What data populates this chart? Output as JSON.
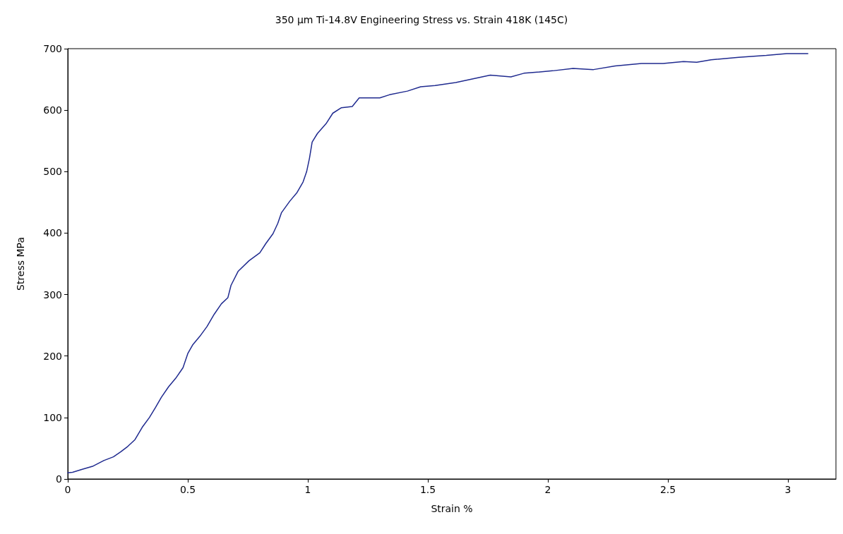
{
  "chart_data": {
    "type": "line",
    "title": "350 μm Ti-14.8V Engineering Stress vs. Strain 418K (145C)",
    "xlabel": "Strain %",
    "ylabel": "Stress MPa",
    "xlim": [
      0,
      3.2
    ],
    "xticks": [
      0,
      0.5,
      1,
      1.5,
      2,
      2.5,
      3
    ],
    "ylim": [
      0,
      700
    ],
    "yticks": [
      0,
      100,
      200,
      300,
      400,
      500,
      600,
      700
    ],
    "grid": false,
    "marker": "none",
    "line_style": "solid",
    "series": [
      {
        "color": "#1f2a8f",
        "x": [
          0,
          0.02,
          0.063,
          0.106,
          0.15,
          0.19,
          0.22,
          0.25,
          0.28,
          0.31,
          0.34,
          0.365,
          0.39,
          0.42,
          0.45,
          0.48,
          0.5,
          0.52,
          0.55,
          0.58,
          0.61,
          0.64,
          0.667,
          0.68,
          0.71,
          0.755,
          0.8,
          0.825,
          0.855,
          0.875,
          0.89,
          0.925,
          0.955,
          0.98,
          0.995,
          1.007,
          1.018,
          1.04,
          1.076,
          1.104,
          1.14,
          1.185,
          1.214,
          1.3,
          1.34,
          1.415,
          1.47,
          1.53,
          1.616,
          1.76,
          1.846,
          1.9,
          2.02,
          2.105,
          2.19,
          2.28,
          2.39,
          2.48,
          2.565,
          2.62,
          2.68,
          2.795,
          2.91,
          2.995,
          3.083
        ],
        "values": [
          10,
          11,
          16,
          21,
          30,
          36,
          44,
          53,
          64,
          84,
          100,
          116,
          133,
          150,
          164,
          181,
          204,
          218,
          232,
          248,
          268,
          285,
          295,
          315,
          338,
          355,
          368,
          383,
          399,
          416,
          433,
          452,
          466,
          483,
          500,
          522,
          548,
          562,
          578,
          595,
          604,
          606,
          620,
          620,
          625,
          631,
          638,
          640,
          645,
          657,
          654,
          660,
          664,
          668,
          666,
          672,
          676,
          676,
          679,
          678,
          682,
          686,
          689,
          692,
          692
        ]
      }
    ]
  }
}
